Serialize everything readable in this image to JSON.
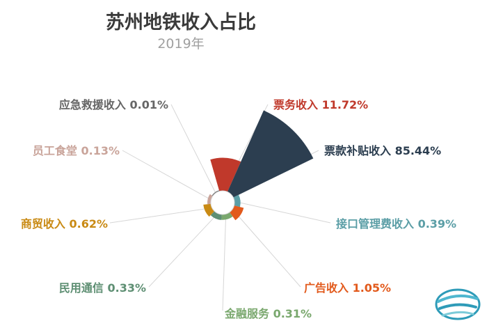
{
  "title": "苏州地铁收入占比",
  "subtitle": "2019年",
  "chart_data": {
    "type": "pie",
    "variant": "polar-area",
    "title": "苏州地铁收入占比",
    "subtitle": "2019年",
    "slices": [
      {
        "label": "票务收入",
        "value": 11.72,
        "display": "11.72%",
        "color": "#c0392b"
      },
      {
        "label": "票款补贴收入",
        "value": 85.44,
        "display": "85.44%",
        "color": "#2c3e50"
      },
      {
        "label": "接口管理费收入",
        "value": 0.39,
        "display": "0.39%",
        "color": "#5b9ea6"
      },
      {
        "label": "广告收入",
        "value": 1.05,
        "display": "1.05%",
        "color": "#e25a1c"
      },
      {
        "label": "金融服务",
        "value": 0.31,
        "display": "0.31%",
        "color": "#7aa86e"
      },
      {
        "label": "民用通信",
        "value": 0.33,
        "display": "0.33%",
        "color": "#5e8f73"
      },
      {
        "label": "商贸收入",
        "value": 0.62,
        "display": "0.62%",
        "color": "#c98a14"
      },
      {
        "label": "员工食堂",
        "value": 0.13,
        "display": "0.13%",
        "color": "#c9a49a"
      },
      {
        "label": "应急救援收入",
        "value": 0.01,
        "display": "0.01%",
        "color": "#666666"
      }
    ]
  }
}
